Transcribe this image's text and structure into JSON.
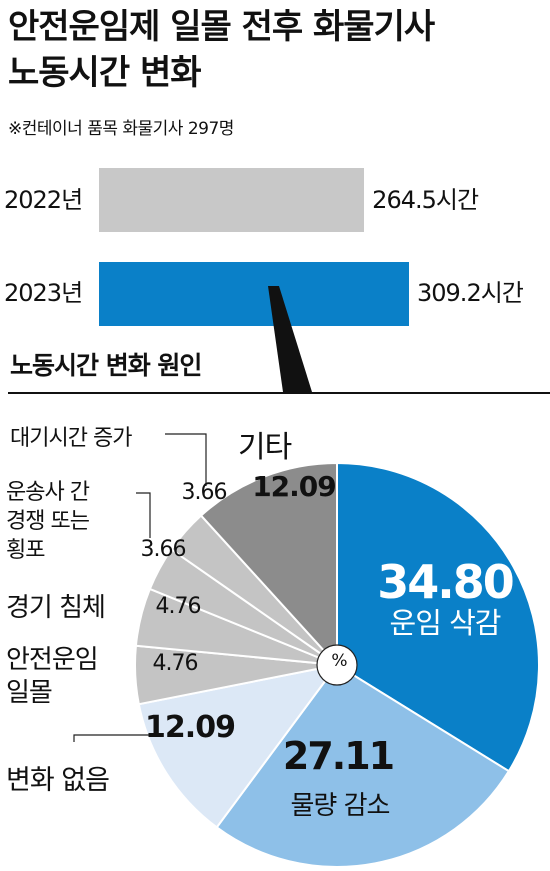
{
  "header": {
    "title_line1": "안전운임제 일몰 전후 화물기사",
    "title_line2": "노동시간 변화",
    "note": "※컨테이너 품목 화물기사 297명"
  },
  "pie_section": {
    "title": "노동시간 변화 원인",
    "center_label": "%"
  },
  "colors": {
    "bar_2022": "#c8c8c8",
    "bar_2023": "#0a80c8",
    "slice_wage": "#0a80c8",
    "slice_volume": "#8ec0e8",
    "slice_nochange": "#dce8f6",
    "slice_gray_light": "#c4c4c4",
    "slice_other": "#8c8c8c"
  },
  "chart_data": [
    {
      "type": "bar",
      "orientation": "horizontal",
      "categories": [
        "2022년",
        "2023년"
      ],
      "values": [
        264.5,
        309.2
      ],
      "value_labels": [
        "264.5시간",
        "309.2시간"
      ],
      "unit": "시간"
    },
    {
      "type": "pie",
      "unit": "%",
      "slices": [
        {
          "label": "운임 삭감",
          "value": 34.8,
          "value_label": "34.80"
        },
        {
          "label": "물량 감소",
          "value": 27.11,
          "value_label": "27.11"
        },
        {
          "label": "변화 없음",
          "value": 12.09,
          "value_label": "12.09"
        },
        {
          "label_lines": [
            "안전운임",
            "일몰"
          ],
          "value": 4.76,
          "value_label": "4.76"
        },
        {
          "label": "경기 침체",
          "value": 4.76,
          "value_label": "4.76"
        },
        {
          "label_lines": [
            "운송사 간",
            "경쟁 또는",
            "횡포"
          ],
          "value": 3.66,
          "value_label": "3.66"
        },
        {
          "label": "대기시간 증가",
          "value": 3.66,
          "value_label": "3.66"
        },
        {
          "label": "기타",
          "value": 12.09,
          "value_label": "12.09"
        }
      ]
    }
  ]
}
